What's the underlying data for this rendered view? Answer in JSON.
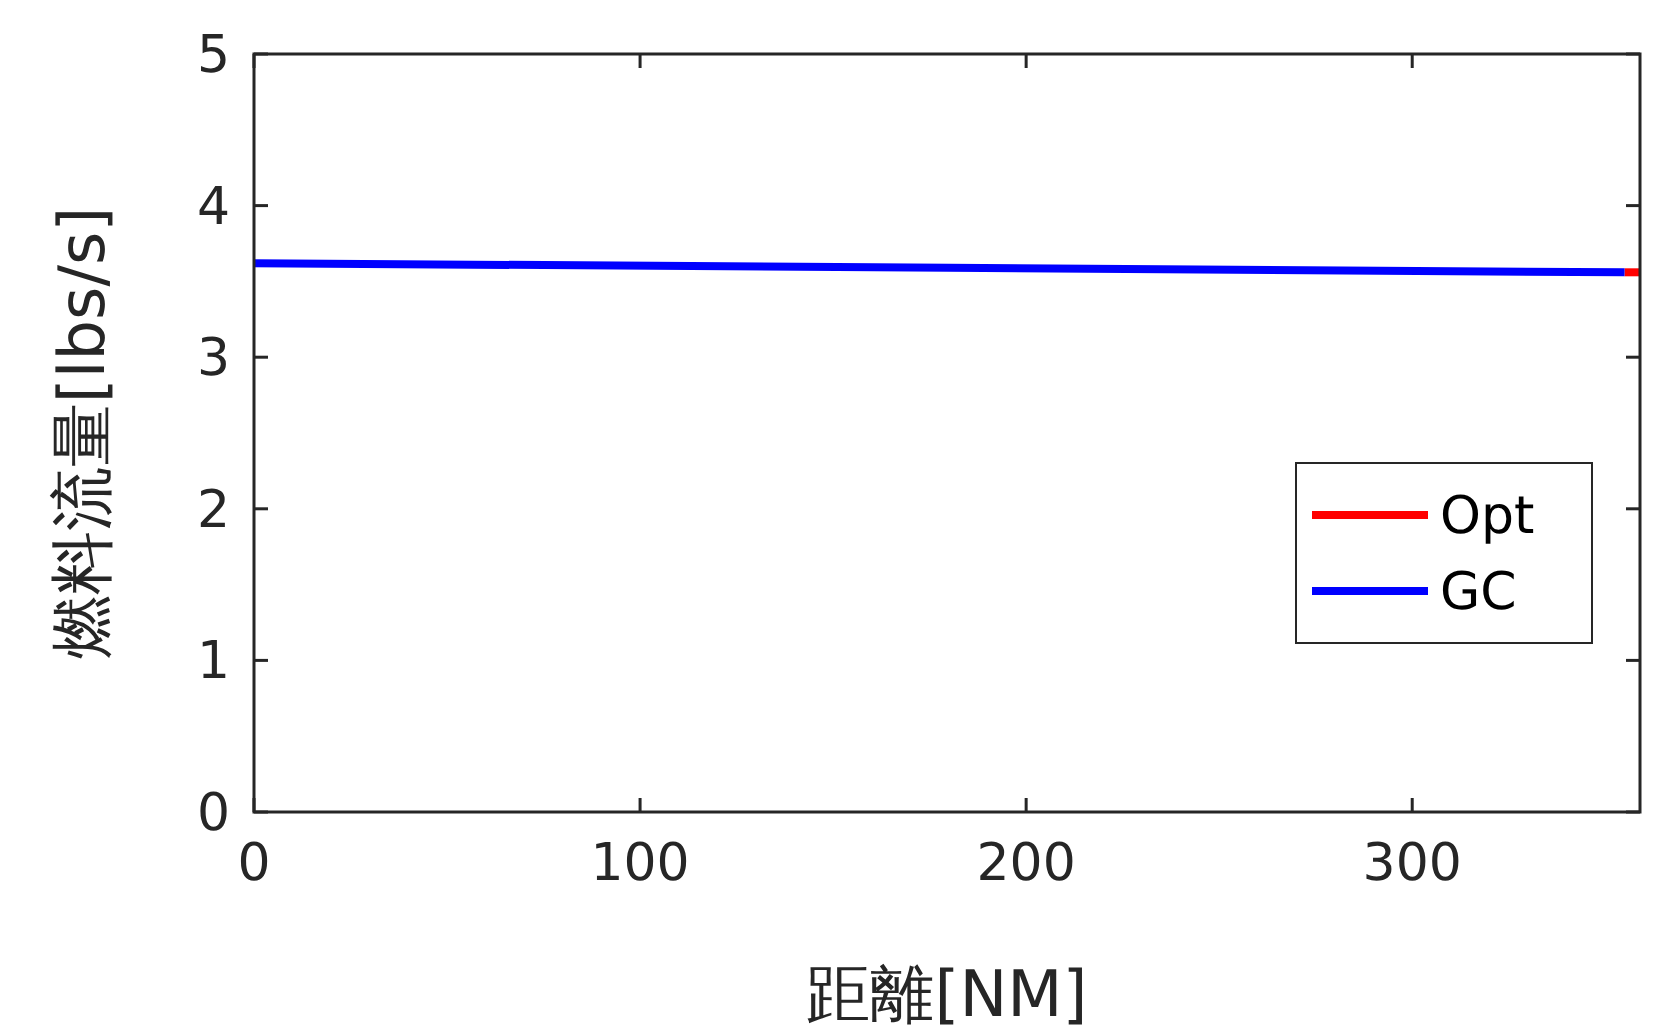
{
  "chart_data": {
    "type": "line",
    "xlabel": "距離[NM]",
    "ylabel": "燃料流量[lbs/s]",
    "xlim": [
      0,
      359
    ],
    "ylim": [
      0,
      5
    ],
    "xticks": [
      0,
      100,
      200,
      300
    ],
    "yticks": [
      0,
      1,
      2,
      3,
      4,
      5
    ],
    "legend": "right",
    "series": [
      {
        "name": "Opt",
        "color": "#ff0000",
        "x": [
          355,
          359
        ],
        "values": [
          3.56,
          3.56
        ]
      },
      {
        "name": "GC",
        "color": "#0000ff",
        "x": [
          0,
          180,
          355
        ],
        "values": [
          3.62,
          3.59,
          3.56
        ]
      }
    ]
  }
}
